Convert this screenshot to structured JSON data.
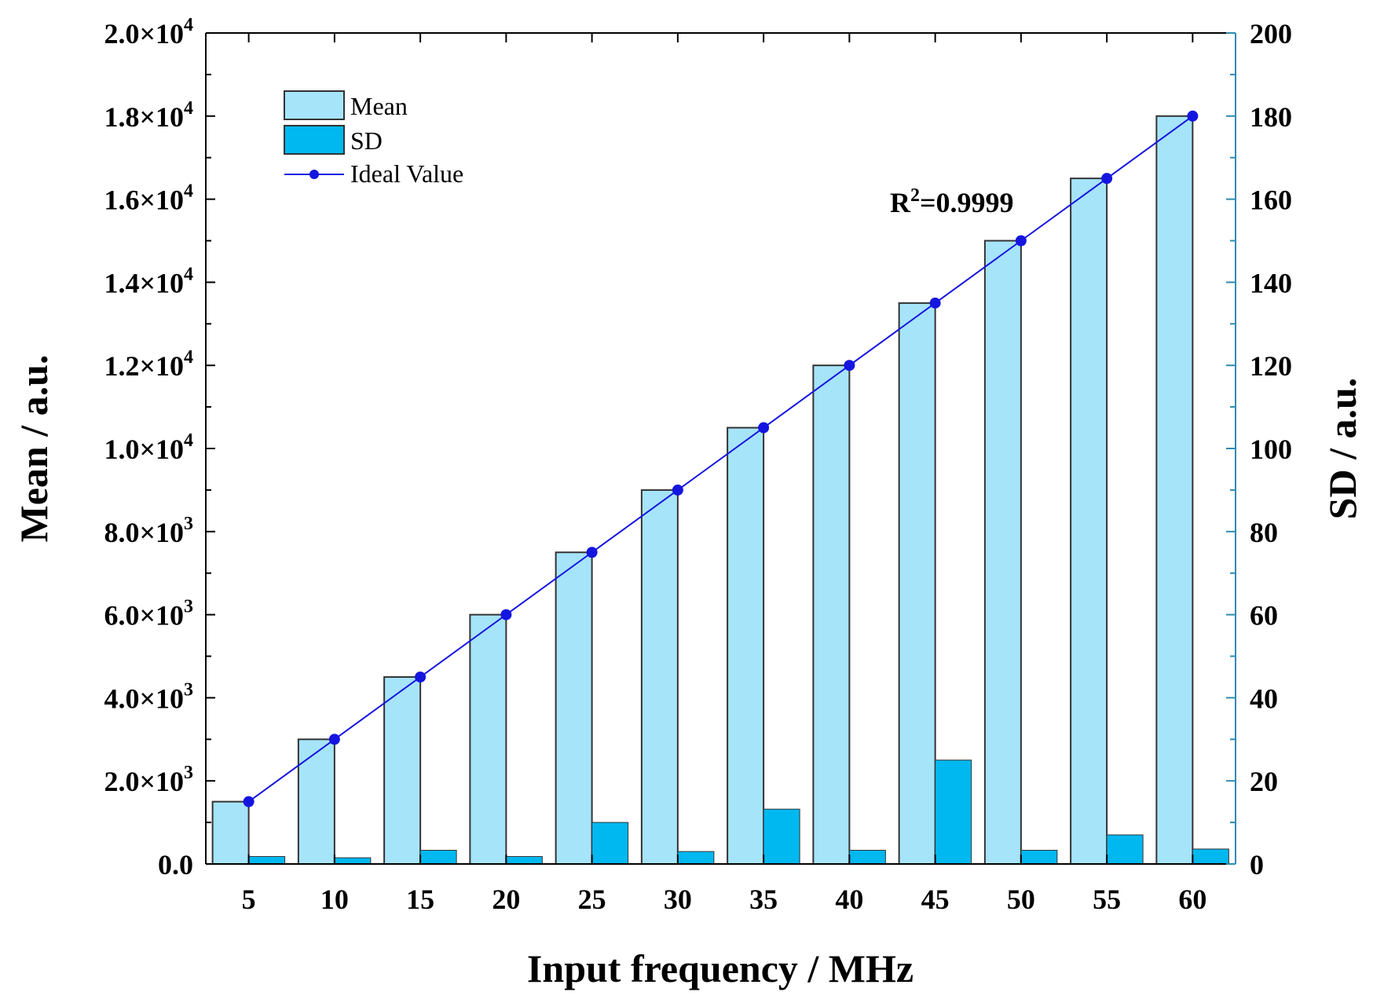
{
  "chart_data": {
    "type": "bar",
    "title": "",
    "xlabel": "Input frequency / MHz",
    "ylabel_left": "Mean / a.u.",
    "ylabel_right": "SD / a.u.",
    "categories": [
      "5",
      "10",
      "15",
      "20",
      "25",
      "30",
      "35",
      "40",
      "45",
      "50",
      "55",
      "60"
    ],
    "ylim_left": [
      0,
      20000
    ],
    "ylim_right": [
      0,
      200
    ],
    "yticks_left": [
      {
        "value": 0,
        "mantissa": "0.0",
        "exp": ""
      },
      {
        "value": 2000,
        "mantissa": "2.0×10",
        "exp": "3"
      },
      {
        "value": 4000,
        "mantissa": "4.0×10",
        "exp": "3"
      },
      {
        "value": 6000,
        "mantissa": "6.0×10",
        "exp": "3"
      },
      {
        "value": 8000,
        "mantissa": "8.0×10",
        "exp": "3"
      },
      {
        "value": 10000,
        "mantissa": "1.0×10",
        "exp": "4"
      },
      {
        "value": 12000,
        "mantissa": "1.2×10",
        "exp": "4"
      },
      {
        "value": 14000,
        "mantissa": "1.4×10",
        "exp": "4"
      },
      {
        "value": 16000,
        "mantissa": "1.6×10",
        "exp": "4"
      },
      {
        "value": 18000,
        "mantissa": "1.8×10",
        "exp": "4"
      },
      {
        "value": 20000,
        "mantissa": "2.0×10",
        "exp": "4"
      }
    ],
    "yticks_right": [
      "0",
      "20",
      "40",
      "60",
      "80",
      "100",
      "120",
      "140",
      "160",
      "180",
      "200"
    ],
    "series": [
      {
        "name": "Mean",
        "axis": "left",
        "kind": "bar",
        "color": "#a6e4fa",
        "values": [
          1500,
          3000,
          4500,
          6000,
          7500,
          9000,
          10500,
          12000,
          13500,
          15000,
          16500,
          18000
        ]
      },
      {
        "name": "SD",
        "axis": "right",
        "kind": "bar",
        "color": "#00b8f0",
        "values": [
          1.8,
          1.5,
          3.3,
          1.8,
          10.0,
          3.0,
          13.2,
          3.3,
          25.0,
          3.3,
          7.0,
          3.6
        ]
      },
      {
        "name": "Ideal Value",
        "axis": "left",
        "kind": "line",
        "color": "#1515e0",
        "values": [
          1500,
          3000,
          4500,
          6000,
          7500,
          9000,
          10500,
          12000,
          13500,
          15000,
          16500,
          18000
        ]
      }
    ],
    "legend": {
      "position": "top-left",
      "entries": [
        "Mean",
        "SD",
        "Ideal Value"
      ]
    },
    "annotation": {
      "base": "R",
      "sup": "2",
      "rest": "=0.9999"
    },
    "grid": false,
    "colors": {
      "axis_left": "#000000",
      "axis_right": "#2f8bb0",
      "bar_edge": "#333333"
    }
  }
}
